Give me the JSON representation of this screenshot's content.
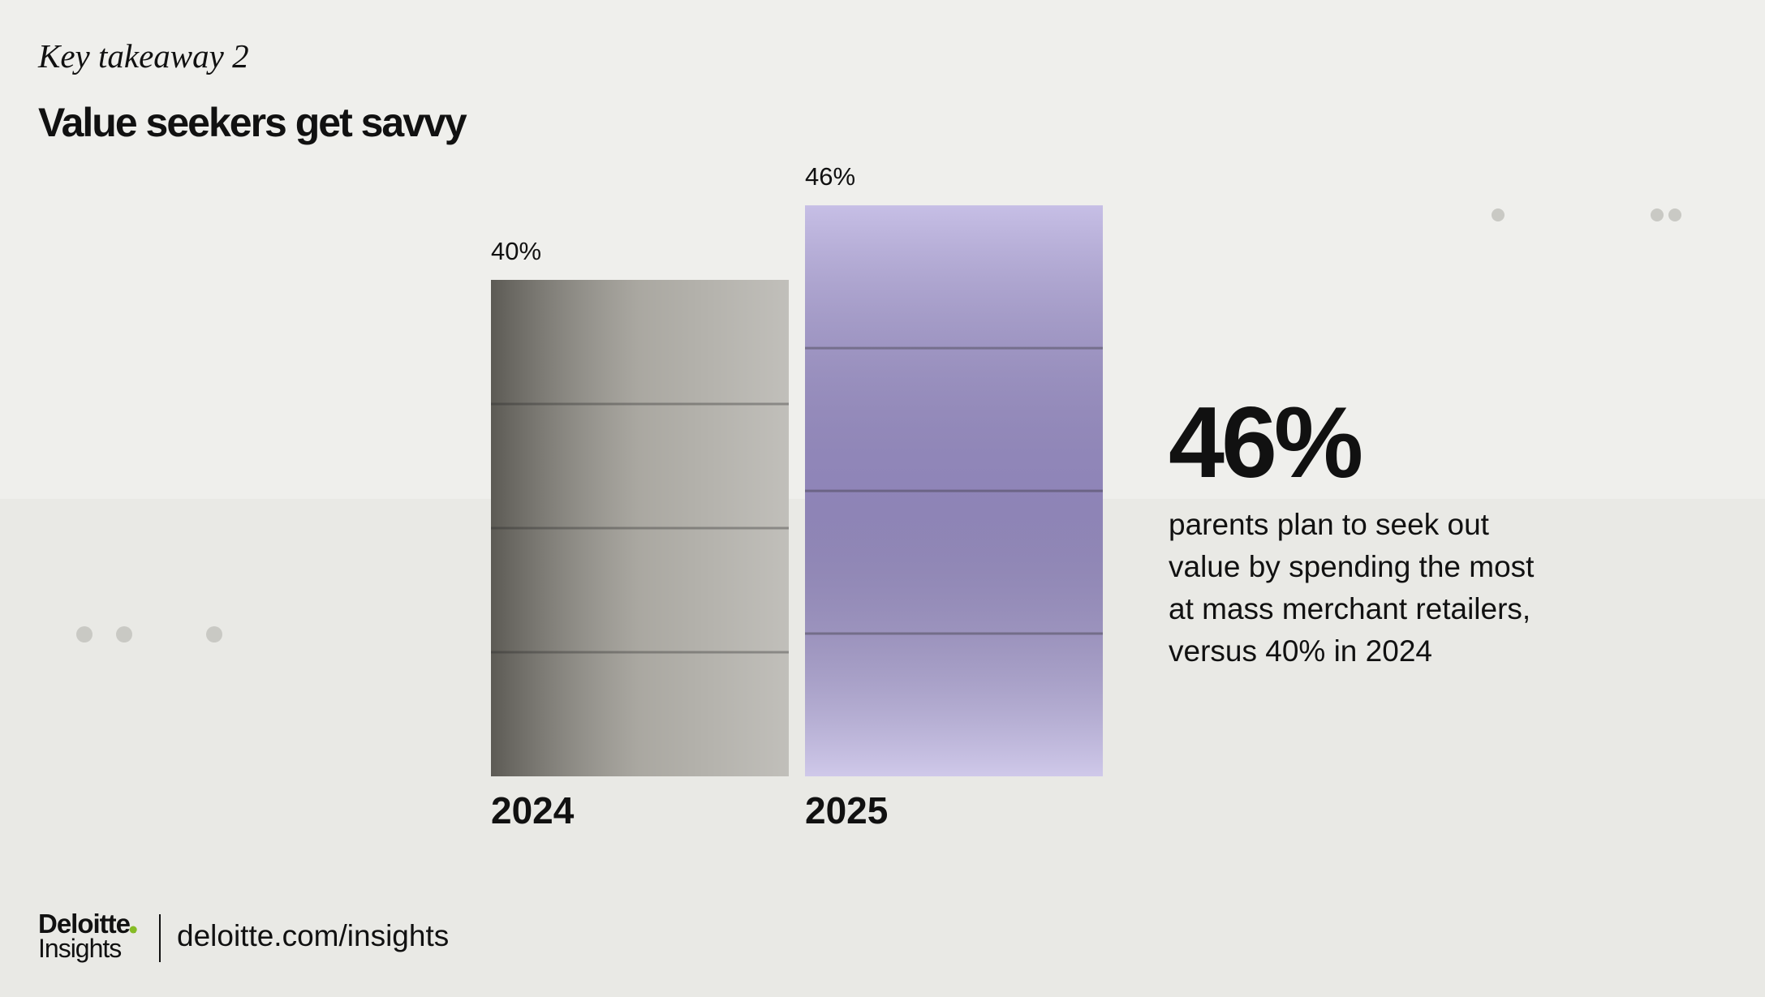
{
  "kicker": "Key takeaway 2",
  "chart_data": {
    "type": "bar",
    "title": "Value seekers get savvy",
    "categories": [
      "2024",
      "2025"
    ],
    "values": [
      40,
      46
    ],
    "value_labels": [
      "40%",
      "46%"
    ],
    "colors": [
      "#8e8b82",
      "#a89cd8"
    ]
  },
  "highlight": {
    "value": "46%",
    "lines": [
      "parents plan to seek out",
      "value by spending the most",
      "at mass merchant retailers,",
      "versus 40% in 2024"
    ]
  },
  "footer": {
    "brand": "Deloitte.",
    "sub": "Insights",
    "url": "deloitte.com/insights"
  }
}
